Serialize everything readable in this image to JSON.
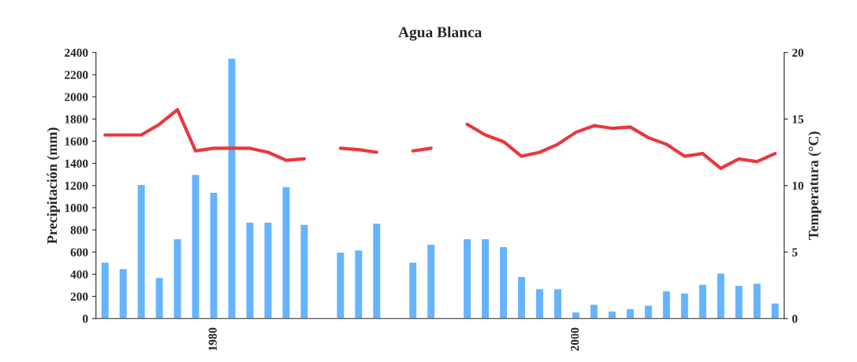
{
  "chart_data": {
    "type": "bar",
    "title": "Agua Blanca",
    "ylabel": "Precipitación (mm)",
    "y2label": "Temperatura (°C)",
    "categories": [
      null,
      null,
      null,
      null,
      null,
      null,
      "1980",
      null,
      null,
      null,
      null,
      null,
      null,
      null,
      null,
      null,
      null,
      null,
      null,
      null,
      null,
      null,
      null,
      null,
      null,
      null,
      "2000",
      null,
      null,
      null,
      null,
      null,
      null,
      null,
      null,
      null,
      null,
      null
    ],
    "series": [
      {
        "color": "#66b3ff",
        "values": [
          510,
          450,
          1210,
          370,
          720,
          1300,
          1140,
          2350,
          870,
          870,
          1190,
          850,
          null,
          600,
          620,
          860,
          null,
          510,
          670,
          null,
          720,
          720,
          650,
          380,
          270,
          270,
          60,
          130,
          70,
          90,
          120,
          250,
          230,
          310,
          410,
          300,
          320,
          140
        ]
      },
      {
        "type": "line",
        "axis": "y2",
        "color": "#e8383d",
        "values": [
          13.8,
          13.8,
          13.8,
          14.6,
          15.7,
          12.6,
          12.8,
          12.8,
          12.8,
          12.5,
          11.9,
          12.0,
          null,
          12.8,
          12.7,
          12.5,
          null,
          12.6,
          12.8,
          null,
          14.6,
          13.8,
          13.3,
          12.2,
          12.5,
          13.1,
          14.0,
          14.5,
          14.3,
          14.4,
          13.6,
          13.1,
          12.2,
          12.4,
          11.3,
          12.0,
          11.8,
          12.4
        ]
      }
    ],
    "ylim": [
      0,
      2400
    ],
    "yticks": [
      0,
      200,
      400,
      600,
      800,
      1000,
      1200,
      1400,
      1600,
      1800,
      2000,
      2200,
      2400
    ],
    "y2lim": [
      0,
      20
    ],
    "y2ticks": [
      0,
      5,
      10,
      15,
      20
    ],
    "grid": false,
    "legend": false,
    "marker": "none",
    "line_style": "solid"
  }
}
